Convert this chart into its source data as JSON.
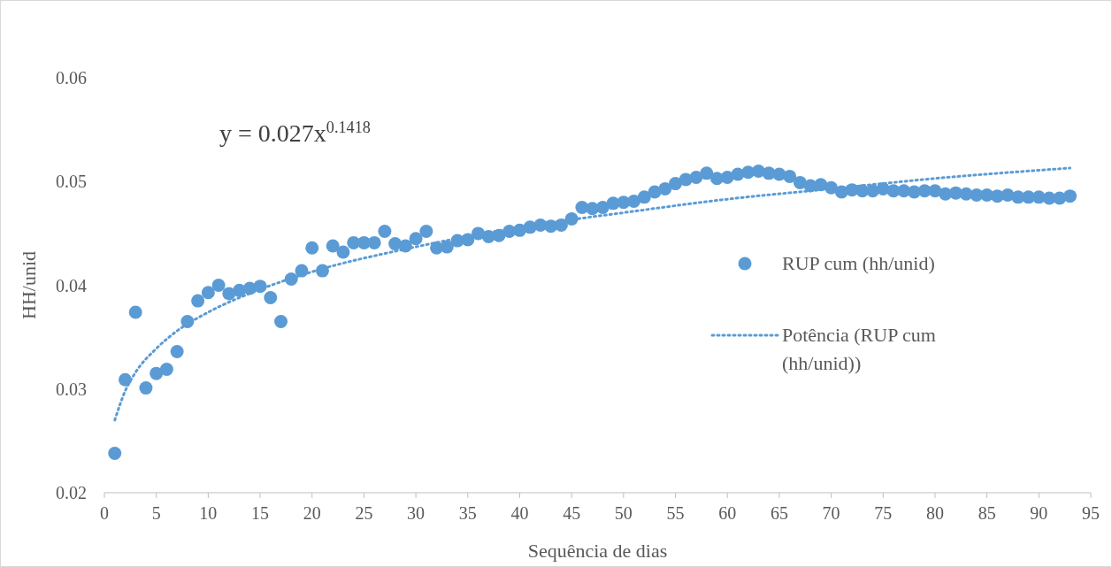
{
  "chart_data": {
    "type": "scatter",
    "xlabel": "Sequência de dias",
    "ylabel": "HH/unid",
    "annotations": [
      "y = 0.027x$^{0.1418}$"
    ],
    "xlim": [
      0,
      95
    ],
    "xticks": [
      0,
      5,
      10,
      15,
      20,
      25,
      30,
      35,
      40,
      45,
      50,
      55,
      60,
      65,
      70,
      75,
      80,
      85,
      90,
      95
    ],
    "ylim": [
      0.02,
      0.06
    ],
    "yticks": [
      0.02,
      0.03,
      0.04,
      0.05,
      0.06
    ],
    "grid": false,
    "legend": "right",
    "series": [
      {
        "name": "RUP cum (hh/unid)",
        "color": "#5b9bd5",
        "marker": "circle",
        "x": [
          1,
          2,
          3,
          4,
          5,
          6,
          7,
          8,
          9,
          10,
          11,
          12,
          13,
          14,
          15,
          16,
          17,
          18,
          19,
          20,
          21,
          22,
          23,
          24,
          25,
          26,
          27,
          28,
          29,
          30,
          31,
          32,
          33,
          34,
          35,
          36,
          37,
          38,
          39,
          40,
          41,
          42,
          43,
          44,
          45,
          46,
          47,
          48,
          49,
          50,
          51,
          52,
          53,
          54,
          55,
          56,
          57,
          58,
          59,
          60,
          61,
          62,
          63,
          64,
          65,
          66,
          67,
          68,
          69,
          70,
          71,
          72,
          73,
          74,
          75,
          76,
          77,
          78,
          79,
          80,
          81,
          82,
          83,
          84,
          85,
          86,
          87,
          88,
          89,
          90,
          91,
          92,
          93
        ],
        "values": [
          0.0238,
          0.0309,
          0.0374,
          0.0301,
          0.0315,
          0.0319,
          0.0336,
          0.0365,
          0.0385,
          0.0393,
          0.04,
          0.0392,
          0.0395,
          0.0397,
          0.0399,
          0.0388,
          0.0365,
          0.0406,
          0.0414,
          0.0436,
          0.0414,
          0.0438,
          0.0432,
          0.0441,
          0.0441,
          0.0441,
          0.0452,
          0.044,
          0.0438,
          0.0445,
          0.0452,
          0.0436,
          0.0437,
          0.0443,
          0.0444,
          0.045,
          0.0447,
          0.0448,
          0.0452,
          0.0453,
          0.0456,
          0.0458,
          0.0457,
          0.0458,
          0.0464,
          0.0475,
          0.0474,
          0.0475,
          0.0479,
          0.048,
          0.0481,
          0.0485,
          0.049,
          0.0493,
          0.0498,
          0.0502,
          0.0504,
          0.0508,
          0.0503,
          0.0504,
          0.0507,
          0.0509,
          0.051,
          0.0508,
          0.0507,
          0.0505,
          0.0499,
          0.0496,
          0.0497,
          0.0494,
          0.049,
          0.0492,
          0.0491,
          0.0491,
          0.0493,
          0.0491,
          0.0491,
          0.049,
          0.0491,
          0.0491,
          0.0488,
          0.0489,
          0.0488,
          0.0487,
          0.0487,
          0.0486,
          0.0487,
          0.0485,
          0.0485,
          0.0485,
          0.0484,
          0.0484,
          0.0486
        ]
      },
      {
        "name": "Potência (RUP cum (hh/unid))",
        "type": "line",
        "color": "#5b9bd5",
        "marker": "none",
        "line_style": "dotted",
        "x": [
          1,
          2,
          3,
          5,
          7,
          10,
          15,
          20,
          30,
          40,
          50,
          60,
          70,
          80,
          93
        ],
        "values": [
          0.027,
          0.0298,
          0.0316,
          0.0339,
          0.0356,
          0.0374,
          0.0396,
          0.0413,
          0.0437,
          0.0456,
          0.047,
          0.0483,
          0.0493,
          0.0503,
          0.0513
        ]
      }
    ]
  }
}
